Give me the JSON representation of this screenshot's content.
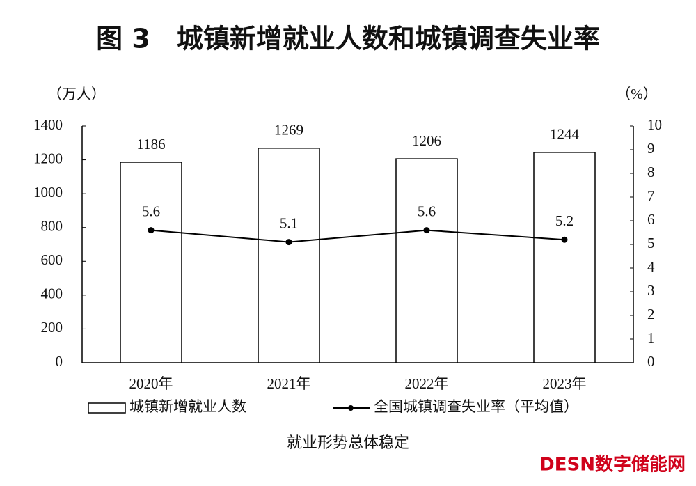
{
  "chart_data": {
    "type": "bar",
    "title": "图 3　城镇新增就业人数和城镇调查失业率",
    "y_unit": "（万人）",
    "y2_unit": "（%）",
    "caption": "就业形势总体稳定",
    "watermark": "DESN数字储能网",
    "categories": [
      "2020年",
      "2021年",
      "2022年",
      "2023年"
    ],
    "series": [
      {
        "name": "城镇新增就业人数",
        "type": "bar",
        "color": "#ffffff",
        "values": [
          1186,
          1269,
          1206,
          1244
        ]
      },
      {
        "name": "全国城镇调查失业率（平均值）",
        "type": "line",
        "color": "#000000",
        "axis": "y2",
        "values": [
          5.6,
          5.1,
          5.6,
          5.2
        ]
      }
    ],
    "ylim": [
      0,
      1400
    ],
    "yticks": [
      0,
      200,
      400,
      600,
      800,
      1000,
      1200,
      1400
    ],
    "y2lim": [
      0,
      10
    ],
    "y2ticks": [
      0,
      1,
      2,
      3,
      4,
      5,
      6,
      7,
      8,
      9,
      10
    ],
    "grid": false
  }
}
